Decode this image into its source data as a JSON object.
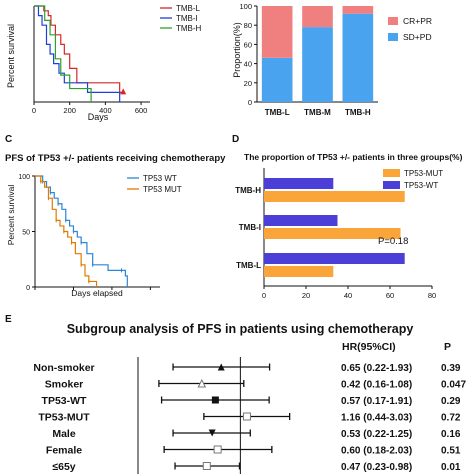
{
  "panelA": {
    "ylabel": "Percent survival",
    "xlabel": "Days",
    "xticks": [
      0,
      200,
      400,
      600
    ],
    "xlim": [
      0,
      650
    ],
    "ylim": [
      0,
      100
    ],
    "legend": [
      "TMB-L",
      "TMB-I",
      "TMB-H"
    ],
    "colors": [
      "#d62728",
      "#1f3fd6",
      "#2ca02c"
    ],
    "series": [
      {
        "name": "TMB-L",
        "x": [
          0,
          30,
          55,
          80,
          95,
          120,
          150,
          170,
          200,
          240,
          460,
          480,
          500
        ],
        "y": [
          100,
          100,
          95,
          90,
          80,
          70,
          60,
          50,
          35,
          20,
          20,
          10,
          10
        ],
        "censor_x": [
          500
        ]
      },
      {
        "name": "TMB-I",
        "x": [
          0,
          25,
          45,
          70,
          90,
          110,
          140,
          170,
          230,
          300,
          480
        ],
        "y": [
          100,
          90,
          80,
          60,
          50,
          40,
          30,
          20,
          20,
          10,
          0
        ],
        "censor_x": []
      },
      {
        "name": "TMB-H",
        "x": [
          0,
          30,
          60,
          90,
          120,
          150,
          200,
          300,
          320
        ],
        "y": [
          100,
          100,
          85,
          70,
          45,
          28,
          14,
          14,
          0
        ],
        "censor_x": []
      }
    ]
  },
  "panelB": {
    "ylabel": "Proportion(%)",
    "categories": [
      "TMB-L",
      "TMB-M",
      "TMB-H"
    ],
    "yticks": [
      0,
      20,
      40,
      60,
      80,
      100
    ],
    "legend": [
      "CR+PR",
      "SD+PD"
    ],
    "colors": {
      "CR+PR": "#f08080",
      "SD+PD": "#4aa3ee"
    },
    "series": [
      {
        "name": "SD+PD",
        "values": [
          46,
          78,
          92
        ]
      },
      {
        "name": "CR+PR",
        "values": [
          54,
          22,
          8
        ]
      }
    ]
  },
  "panelC": {
    "letter": "C",
    "title": "PFS of TP53 +/- patients receiving chemotherapy",
    "ylabel": "Percent survival",
    "xlabel": "Days elapsed",
    "xticks": [
      0,
      200,
      400,
      600
    ],
    "yticks": [
      0,
      50,
      100
    ],
    "xlim": [
      0,
      650
    ],
    "legend": [
      "TP53 WT",
      "TP53 MUT"
    ],
    "colors": [
      "#2a86d6",
      "#e07b00"
    ],
    "series": [
      {
        "name": "TP53 WT",
        "x": [
          0,
          40,
          60,
          80,
          100,
          120,
          140,
          160,
          180,
          200,
          220,
          240,
          270,
          300,
          380,
          450,
          470,
          480
        ],
        "y": [
          100,
          95,
          90,
          85,
          80,
          75,
          70,
          60,
          55,
          50,
          45,
          40,
          30,
          20,
          15,
          15,
          10,
          0
        ]
      },
      {
        "name": "TP53 MUT",
        "x": [
          0,
          30,
          50,
          70,
          90,
          110,
          130,
          150,
          170,
          190,
          210,
          240,
          260,
          280,
          320
        ],
        "y": [
          100,
          95,
          90,
          80,
          70,
          60,
          55,
          50,
          45,
          40,
          30,
          20,
          10,
          5,
          0
        ]
      }
    ]
  },
  "panelD": {
    "letter": "D",
    "title": "The proportion of TP53 +/-  patients in three groups(%)",
    "categories": [
      "TMB-H",
      "TMB-I",
      "TMB-L"
    ],
    "xticks": [
      0,
      20,
      40,
      60,
      80
    ],
    "xlim": [
      0,
      80
    ],
    "legend": [
      "TP53-MUT",
      "TP53-WT"
    ],
    "colors": {
      "TP53-MUT": "#f9a53a",
      "TP53-WT": "#4b3fd8"
    },
    "series": [
      {
        "name": "TP53-WT",
        "values": [
          33,
          35,
          67
        ]
      },
      {
        "name": "TP53-MUT",
        "values": [
          67,
          65,
          33
        ]
      }
    ],
    "annotation": "P=0.18"
  },
  "panelE": {
    "letter": "E",
    "title": "Subgroup analysis of PFS in patients using chemotherapy",
    "col_hr": "HR(95%CI)",
    "col_p": "P",
    "rows": [
      {
        "label": "Non-smoker",
        "hr": 0.65,
        "lo": 0.22,
        "hi": 1.93,
        "text": "0.65 (0.22-1.93)",
        "p": "0.39",
        "marker": "tri"
      },
      {
        "label": "Smoker",
        "hr": 0.42,
        "lo": 0.16,
        "hi": 1.08,
        "text": "0.42 (0.16-1.08)",
        "p": "0.047",
        "marker": "tri-open"
      },
      {
        "label": "TP53-WT",
        "hr": 0.57,
        "lo": 0.17,
        "hi": 1.91,
        "text": "0.57 (0.17-1.91)",
        "p": "0.29",
        "marker": "square"
      },
      {
        "label": "TP53-MUT",
        "hr": 1.16,
        "lo": 0.44,
        "hi": 3.03,
        "text": "1.16 (0.44-3.03)",
        "p": "0.72",
        "marker": "square-open"
      },
      {
        "label": "Male",
        "hr": 0.53,
        "lo": 0.22,
        "hi": 1.25,
        "text": "0.53 (0.22-1.25)",
        "p": "0.16",
        "marker": "tri-down"
      },
      {
        "label": "Female",
        "hr": 0.6,
        "lo": 0.18,
        "hi": 2.03,
        "text": "0.60 (0.18-2.03)",
        "p": "0.51",
        "marker": "square-open"
      },
      {
        "label": "≤65y",
        "hr": 0.47,
        "lo": 0.23,
        "hi": 0.98,
        "text": "0.47 (0.23-0.98)",
        "p": "0.01",
        "marker": "square-open"
      }
    ]
  },
  "chart_data": [
    {
      "type": "line",
      "title": "",
      "xlabel": "Days",
      "ylabel": "Percent survival",
      "xlim": [
        0,
        650
      ],
      "ylim": [
        0,
        100
      ],
      "legend": "top-right",
      "series": [
        {
          "name": "TMB-L",
          "x": [
            0,
            30,
            55,
            80,
            95,
            120,
            150,
            170,
            200,
            240,
            460,
            480,
            500
          ],
          "y": [
            100,
            100,
            95,
            90,
            80,
            70,
            60,
            50,
            35,
            20,
            20,
            10,
            10
          ]
        },
        {
          "name": "TMB-I",
          "x": [
            0,
            25,
            45,
            70,
            90,
            110,
            140,
            170,
            230,
            300,
            480
          ],
          "y": [
            100,
            90,
            80,
            60,
            50,
            40,
            30,
            20,
            20,
            10,
            0
          ]
        },
        {
          "name": "TMB-H",
          "x": [
            0,
            30,
            60,
            90,
            120,
            150,
            200,
            300,
            320
          ],
          "y": [
            100,
            100,
            85,
            70,
            45,
            28,
            14,
            14,
            0
          ]
        }
      ]
    },
    {
      "type": "bar",
      "stacked": true,
      "title": "",
      "ylabel": "Proportion(%)",
      "ylim": [
        0,
        100
      ],
      "categories": [
        "TMB-L",
        "TMB-M",
        "TMB-H"
      ],
      "legend": "right",
      "series": [
        {
          "name": "SD+PD",
          "values": [
            46,
            78,
            92
          ]
        },
        {
          "name": "CR+PR",
          "values": [
            54,
            22,
            8
          ]
        }
      ]
    },
    {
      "type": "line",
      "title": "PFS of TP53 +/- patients receiving chemotherapy",
      "xlabel": "Days elapsed",
      "ylabel": "Percent survival",
      "xlim": [
        0,
        650
      ],
      "ylim": [
        0,
        100
      ],
      "legend": "top-right",
      "series": [
        {
          "name": "TP53 WT",
          "x": [
            0,
            40,
            60,
            80,
            100,
            120,
            140,
            160,
            180,
            200,
            220,
            240,
            270,
            300,
            380,
            450,
            470,
            480
          ],
          "y": [
            100,
            95,
            90,
            85,
            80,
            75,
            70,
            60,
            55,
            50,
            45,
            40,
            30,
            20,
            15,
            15,
            10,
            0
          ]
        },
        {
          "name": "TP53 MUT",
          "x": [
            0,
            30,
            50,
            70,
            90,
            110,
            130,
            150,
            170,
            190,
            210,
            240,
            260,
            280,
            320
          ],
          "y": [
            100,
            95,
            90,
            80,
            70,
            60,
            55,
            50,
            45,
            40,
            30,
            20,
            10,
            5,
            0
          ]
        }
      ]
    },
    {
      "type": "bar",
      "orientation": "horizontal",
      "title": "The proportion of TP53 +/-  patients in three groups(%)",
      "categories": [
        "TMB-H",
        "TMB-I",
        "TMB-L"
      ],
      "xlim": [
        0,
        80
      ],
      "legend": "top-right",
      "series": [
        {
          "name": "TP53-WT",
          "values": [
            33,
            35,
            67
          ]
        },
        {
          "name": "TP53-MUT",
          "values": [
            67,
            65,
            33
          ]
        }
      ],
      "annotations": [
        "P=0.18"
      ]
    },
    {
      "type": "scatter",
      "subtype": "forest",
      "title": "Subgroup analysis of PFS in patients using chemotherapy",
      "categories": [
        "Non-smoker",
        "Smoker",
        "TP53-WT",
        "TP53-MUT",
        "Male",
        "Female",
        "≤65y"
      ],
      "hr": [
        0.65,
        0.42,
        0.57,
        1.16,
        0.53,
        0.6,
        0.47
      ],
      "ci_low": [
        0.22,
        0.16,
        0.17,
        0.44,
        0.22,
        0.18,
        0.23
      ],
      "ci_high": [
        1.93,
        1.08,
        1.91,
        3.03,
        1.25,
        2.03,
        0.98
      ],
      "p": [
        "0.39",
        "0.047",
        "0.29",
        "0.72",
        "0.16",
        "0.51",
        "0.01"
      ]
    }
  ]
}
